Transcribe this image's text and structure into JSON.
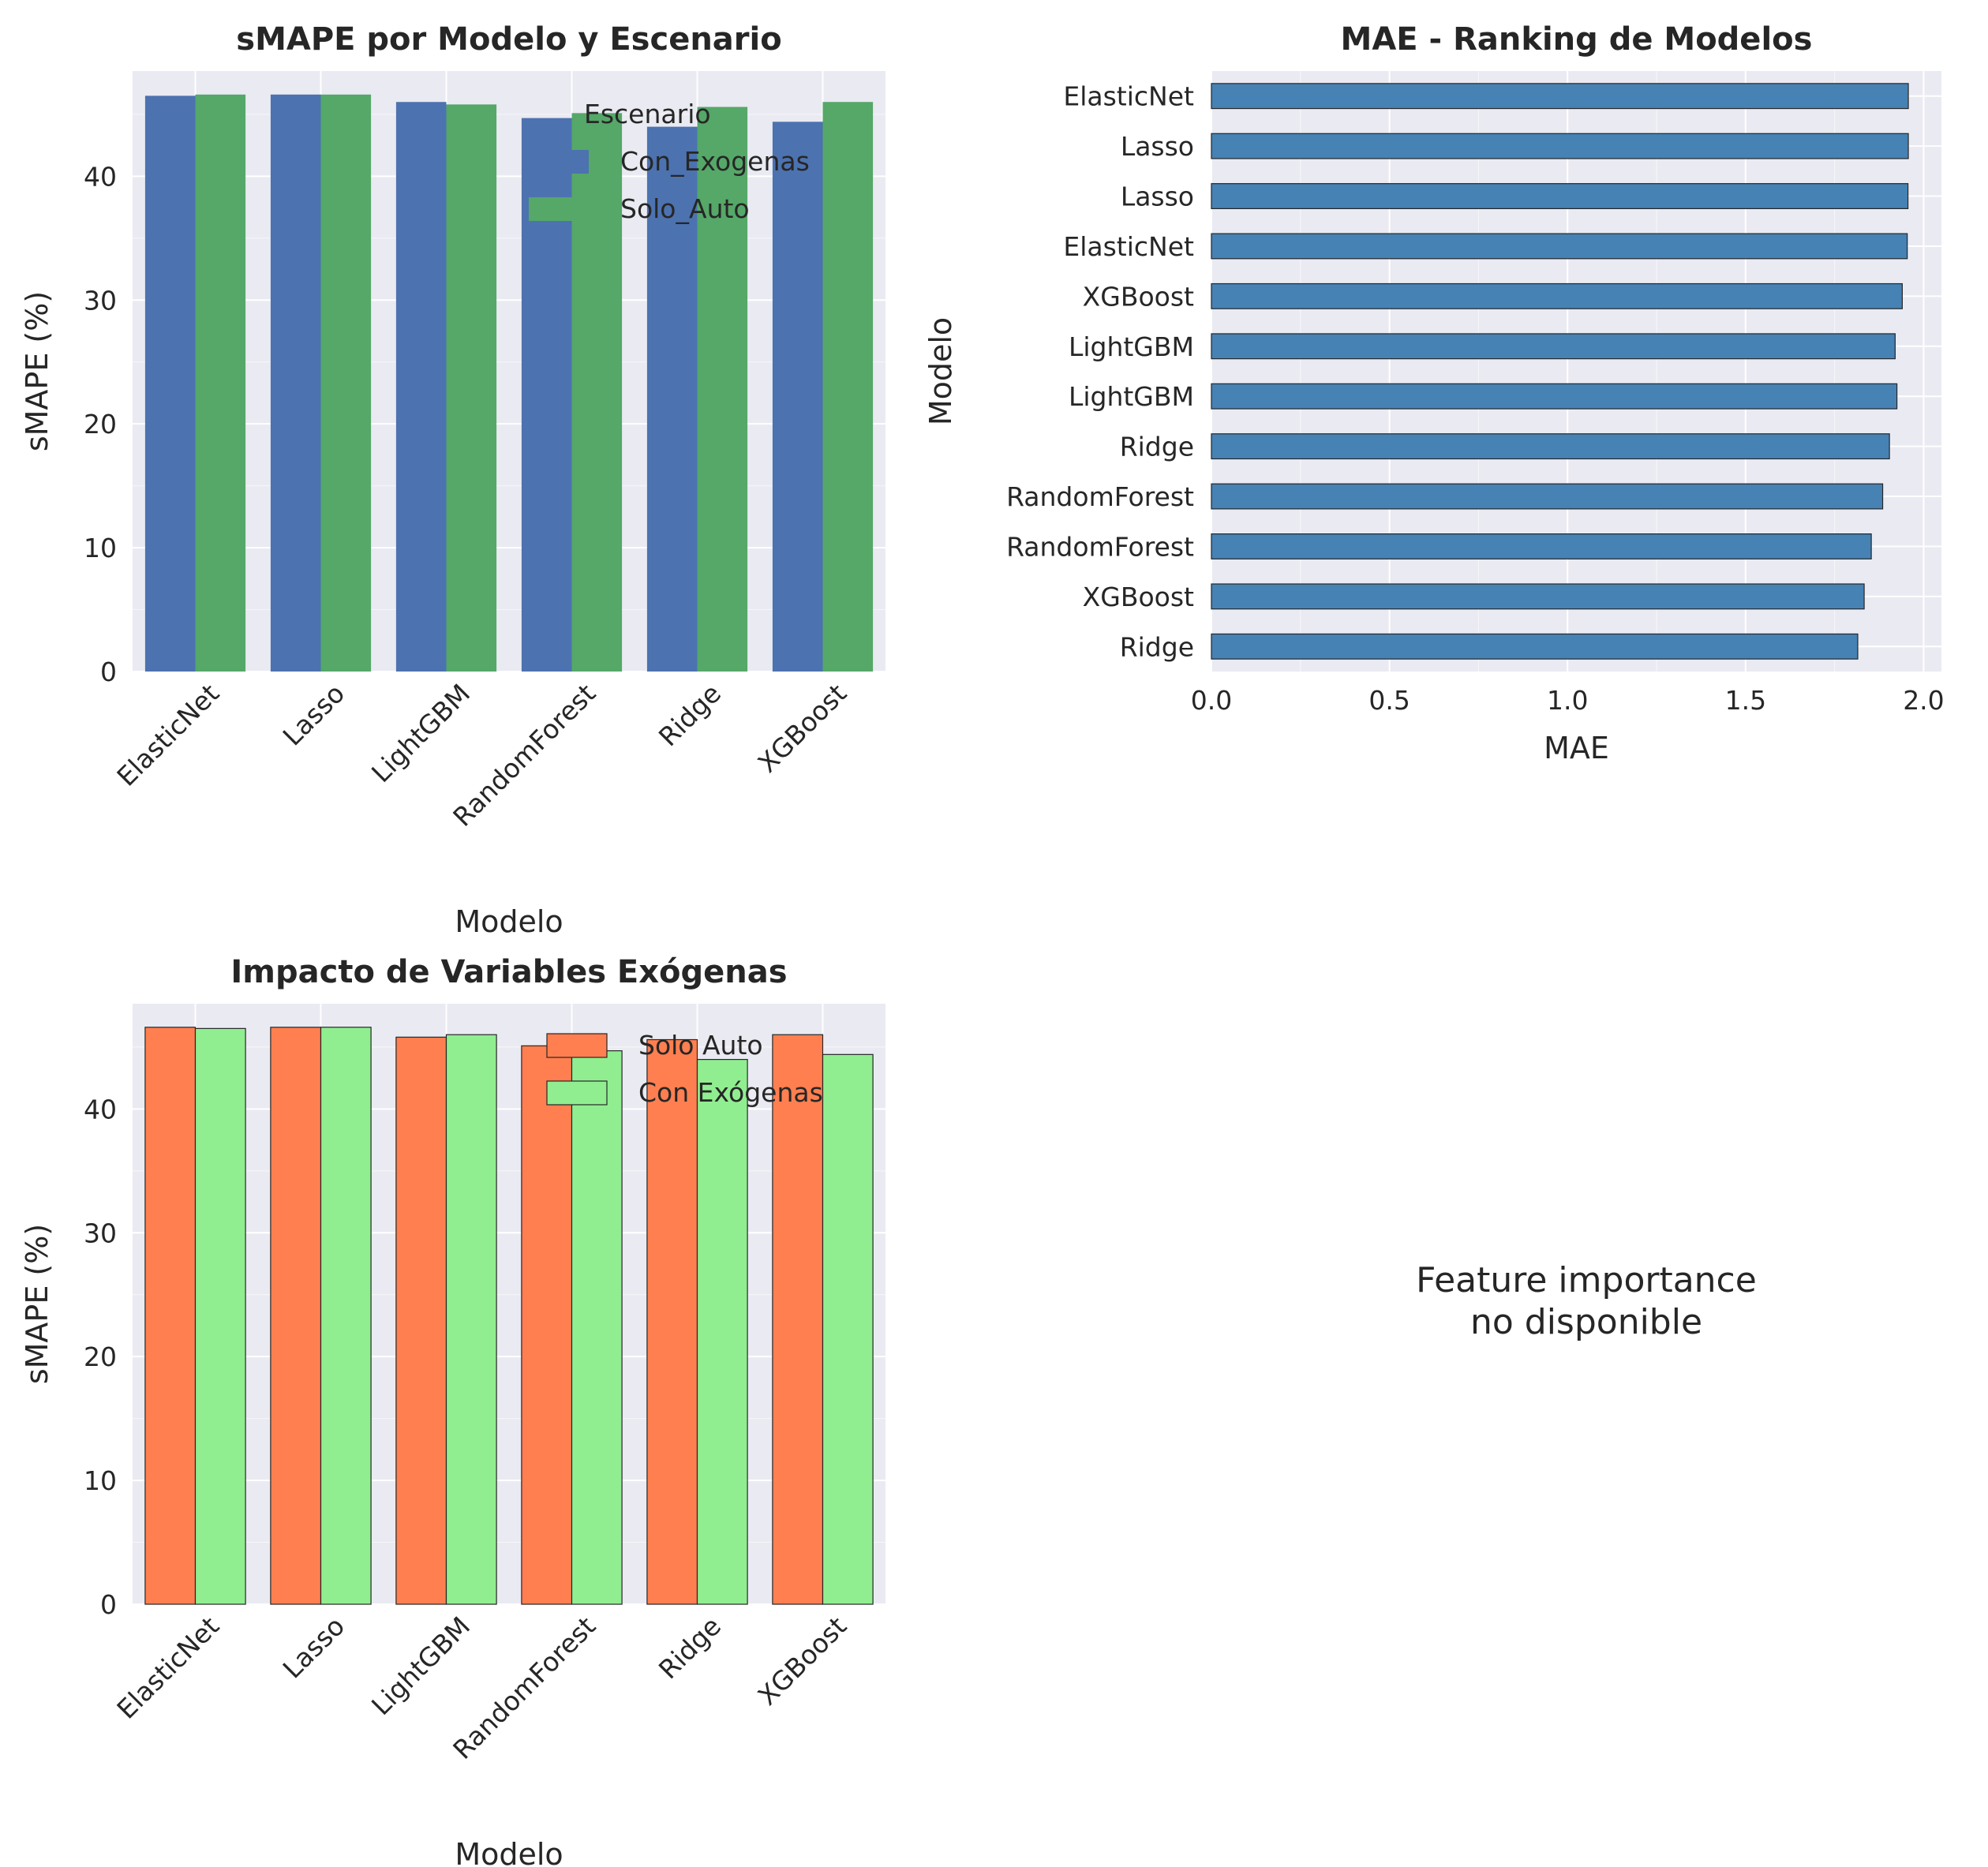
{
  "chart_data": [
    {
      "type": "bar",
      "title": "sMAPE por Modelo y Escenario",
      "xlabel": "Modelo",
      "ylabel": "sMAPE (%)",
      "categories": [
        "ElasticNet",
        "Lasso",
        "LightGBM",
        "RandomForest",
        "Ridge",
        "XGBoost"
      ],
      "ylim": [
        0,
        48.5
      ],
      "yticks": [
        "0",
        "10",
        "20",
        "30",
        "40"
      ],
      "legend_title": "Escenario",
      "legend_position": "top-right",
      "grid": true,
      "series": [
        {
          "name": "Con_Exogenas",
          "color": "#4c72b0",
          "values": [
            46.5,
            46.6,
            46.0,
            44.7,
            44.0,
            44.4
          ]
        },
        {
          "name": "Solo_Auto",
          "color": "#55a868",
          "values": [
            46.6,
            46.6,
            45.8,
            45.1,
            45.6,
            46.0
          ]
        }
      ]
    },
    {
      "type": "bar",
      "orientation": "horizontal",
      "title": "MAE - Ranking de Modelos",
      "xlabel": "MAE",
      "ylabel": "Modelo",
      "categories": [
        "ElasticNet",
        "Lasso",
        "Lasso",
        "ElasticNet",
        "XGBoost",
        "LightGBM",
        "LightGBM",
        "Ridge",
        "RandomForest",
        "RandomForest",
        "XGBoost",
        "Ridge"
      ],
      "values": [
        1.957,
        1.957,
        1.956,
        1.954,
        1.94,
        1.92,
        1.925,
        1.904,
        1.885,
        1.853,
        1.833,
        1.815
      ],
      "xlim": [
        0,
        2.05
      ],
      "xticks": [
        "0.0",
        "0.5",
        "1.0",
        "1.5",
        "2.0"
      ],
      "color": "#4682b4",
      "grid": true
    },
    {
      "type": "bar",
      "title": "Impacto de Variables Exógenas",
      "xlabel": "Modelo",
      "ylabel": "sMAPE (%)",
      "categories": [
        "ElasticNet",
        "Lasso",
        "LightGBM",
        "RandomForest",
        "Ridge",
        "XGBoost"
      ],
      "ylim": [
        0,
        48.5
      ],
      "yticks": [
        "0",
        "10",
        "20",
        "30",
        "40"
      ],
      "legend_position": "top-right",
      "grid": true,
      "series": [
        {
          "name": "Solo Auto",
          "color": "#ff7f50",
          "values": [
            46.6,
            46.6,
            45.8,
            45.1,
            45.6,
            46.0
          ]
        },
        {
          "name": "Con Exógenas",
          "color": "#90ee90",
          "values": [
            46.5,
            46.6,
            46.0,
            44.7,
            44.0,
            44.4
          ]
        }
      ]
    }
  ],
  "placeholder_panel": {
    "line1": "Feature importance",
    "line2": "no disponible"
  }
}
